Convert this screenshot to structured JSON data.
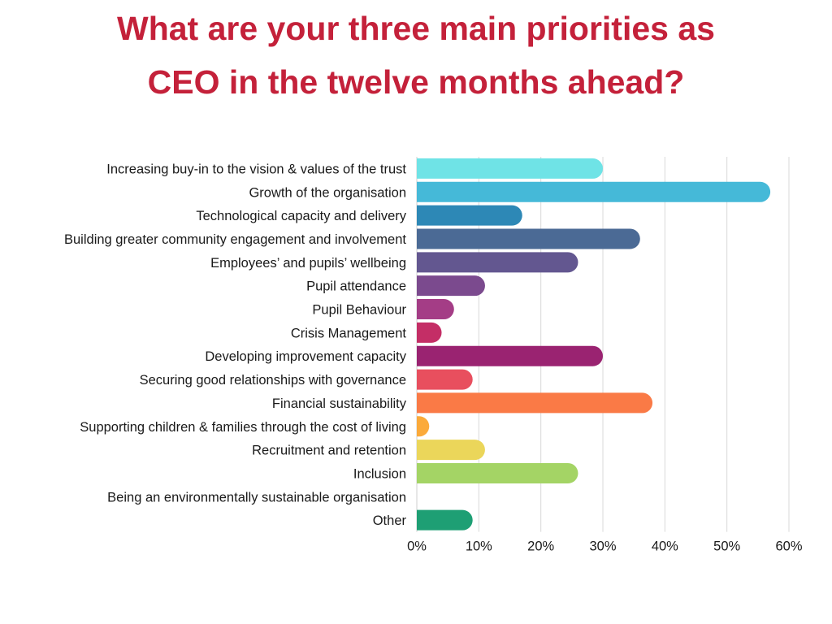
{
  "chart_data": {
    "type": "bar",
    "orientation": "horizontal",
    "title_lines": [
      "What are your three main priorities as",
      "CEO in the twelve months ahead?"
    ],
    "title": "What are your three main priorities as CEO in the twelve months ahead?",
    "xlabel": "",
    "ylabel": "",
    "xlim": [
      0,
      60
    ],
    "x_ticks": [
      0,
      10,
      20,
      30,
      40,
      50,
      60
    ],
    "x_tick_labels": [
      "0%",
      "10%",
      "20%",
      "30%",
      "40%",
      "50%",
      "60%"
    ],
    "grid": "vertical",
    "legend": "none",
    "categories": [
      "Increasing buy-in to the vision & values of the trust",
      "Growth of the organisation",
      "Technological capacity and delivery",
      "Building greater community engagement and involvement",
      "Employees’ and pupils’ wellbeing",
      "Pupil attendance",
      "Pupil Behaviour",
      "Crisis Management",
      "Developing improvement capacity",
      "Securing good relationships with governance",
      "Financial sustainability",
      "Supporting children & families through the cost of living",
      "Recruitment and retention",
      "Inclusion",
      "Being an environmentally sustainable organisation",
      "Other"
    ],
    "values": [
      30,
      57,
      17,
      36,
      26,
      11,
      6,
      4,
      30,
      9,
      38,
      2,
      11,
      26,
      0,
      9
    ],
    "bar_colors": [
      "#6fe3e6",
      "#45b9d8",
      "#2d88b6",
      "#4b6a95",
      "#635790",
      "#7b4a8e",
      "#a43d86",
      "#c42e66",
      "#9a2371",
      "#e84f5e",
      "#fa7a46",
      "#fbaa3a",
      "#ebd65a",
      "#a4d465",
      "#cccccc",
      "#1e9f74"
    ],
    "title_color": "#c4213a"
  }
}
